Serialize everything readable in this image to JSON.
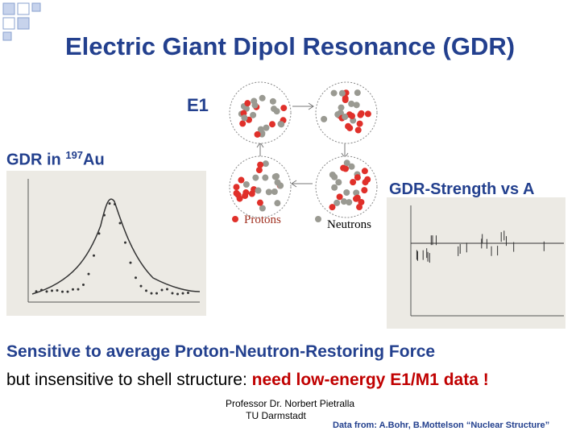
{
  "title": "Electric Giant Dipol Resonance (GDR)",
  "diagram": {
    "mode": "E1",
    "protons": "Protons",
    "neutrons": "Neutrons"
  },
  "left_plot": {
    "label_prefix": "GDR in ",
    "label_sup": "197",
    "label_suffix": "Au"
  },
  "right_plot": {
    "label": "GDR-Strength vs A"
  },
  "body": {
    "line1": "Sensitive to average Proton-Neutron-Restoring Force",
    "line2": "but insensitive to shell structure: ",
    "line2_highlight": "need low-energy E1/M1 data !"
  },
  "footer": {
    "author": "Professor Dr. Norbert Pietralla",
    "institution": "TU Darmstadt",
    "credit": "Data from: A.Bohr, B.Mottelson  “Nuclear Structure”"
  }
}
